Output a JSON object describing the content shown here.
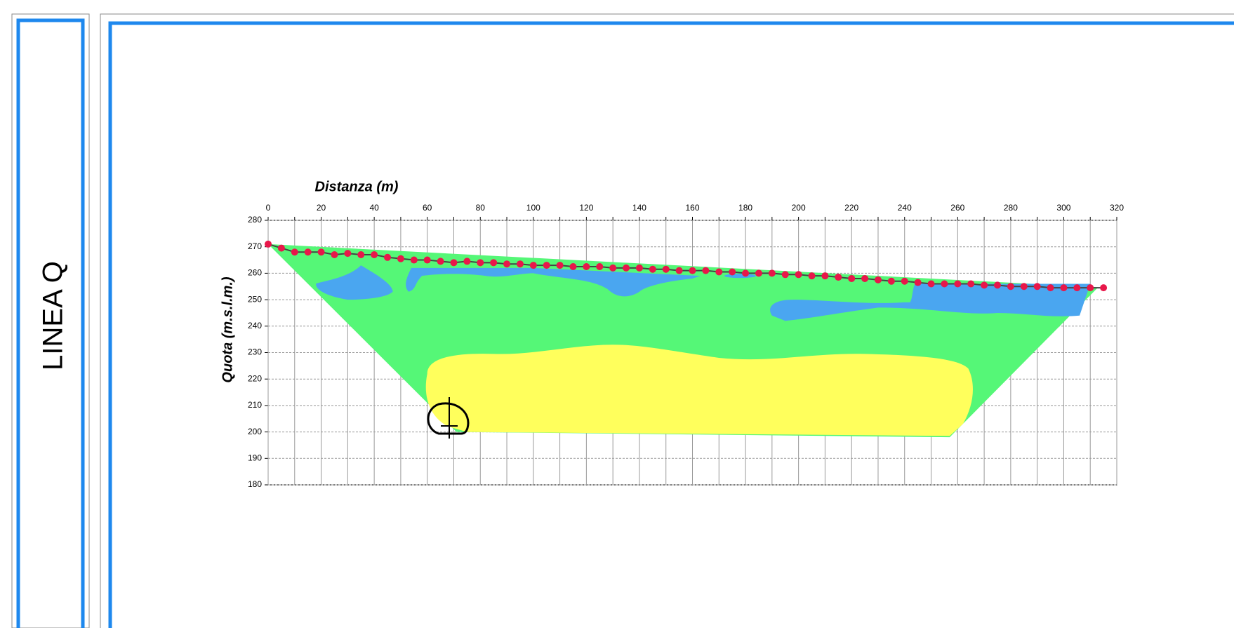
{
  "side_label": "LINEA Q",
  "chart_data": {
    "type": "line",
    "x_label": "Distanza (m)",
    "y_label": "Quota (m.s.l.m.)",
    "x": [
      0,
      5,
      10,
      15,
      20,
      25,
      30,
      35,
      40,
      45,
      50,
      55,
      60,
      65,
      70,
      75,
      80,
      85,
      90,
      95,
      100,
      105,
      110,
      115,
      120,
      125,
      130,
      135,
      140,
      145,
      150,
      155,
      160,
      165,
      170,
      175,
      180,
      185,
      190,
      195,
      200,
      205,
      210,
      215,
      220,
      225,
      230,
      235,
      240,
      245,
      250,
      255,
      260,
      265,
      270,
      275,
      280,
      285,
      290,
      295,
      300,
      305,
      310,
      315
    ],
    "values": [
      271,
      269.5,
      268,
      268,
      268,
      267,
      267.5,
      267,
      267,
      266,
      265.5,
      265,
      265,
      264.5,
      264,
      264.5,
      264,
      264,
      263.5,
      263.5,
      263,
      263,
      263,
      262.5,
      262.5,
      262.5,
      262,
      262,
      262,
      261.5,
      261.5,
      261,
      261,
      261,
      260.5,
      260.5,
      260,
      260,
      260,
      259.5,
      259.5,
      259,
      259,
      258.5,
      258,
      258,
      257.5,
      257,
      257,
      256.5,
      256,
      256,
      256,
      256,
      255.5,
      255.5,
      255,
      255,
      255,
      254.5,
      254.5,
      254.5,
      254.5,
      254.5
    ],
    "color": "#e8174a",
    "line_color": "#444444",
    "xlim": [
      0,
      320
    ],
    "xticks": [
      0,
      20,
      40,
      60,
      80,
      100,
      120,
      140,
      160,
      180,
      200,
      220,
      240,
      260,
      280,
      300,
      320
    ],
    "x_minor_ticks": [
      10,
      30,
      50,
      70,
      90,
      110,
      130,
      150,
      170,
      190,
      210,
      230,
      250,
      270,
      290,
      310
    ],
    "ylim": [
      180,
      280
    ],
    "yticks": [
      180,
      190,
      200,
      210,
      220,
      230,
      240,
      250,
      260,
      270,
      280
    ],
    "grid": true
  }
}
